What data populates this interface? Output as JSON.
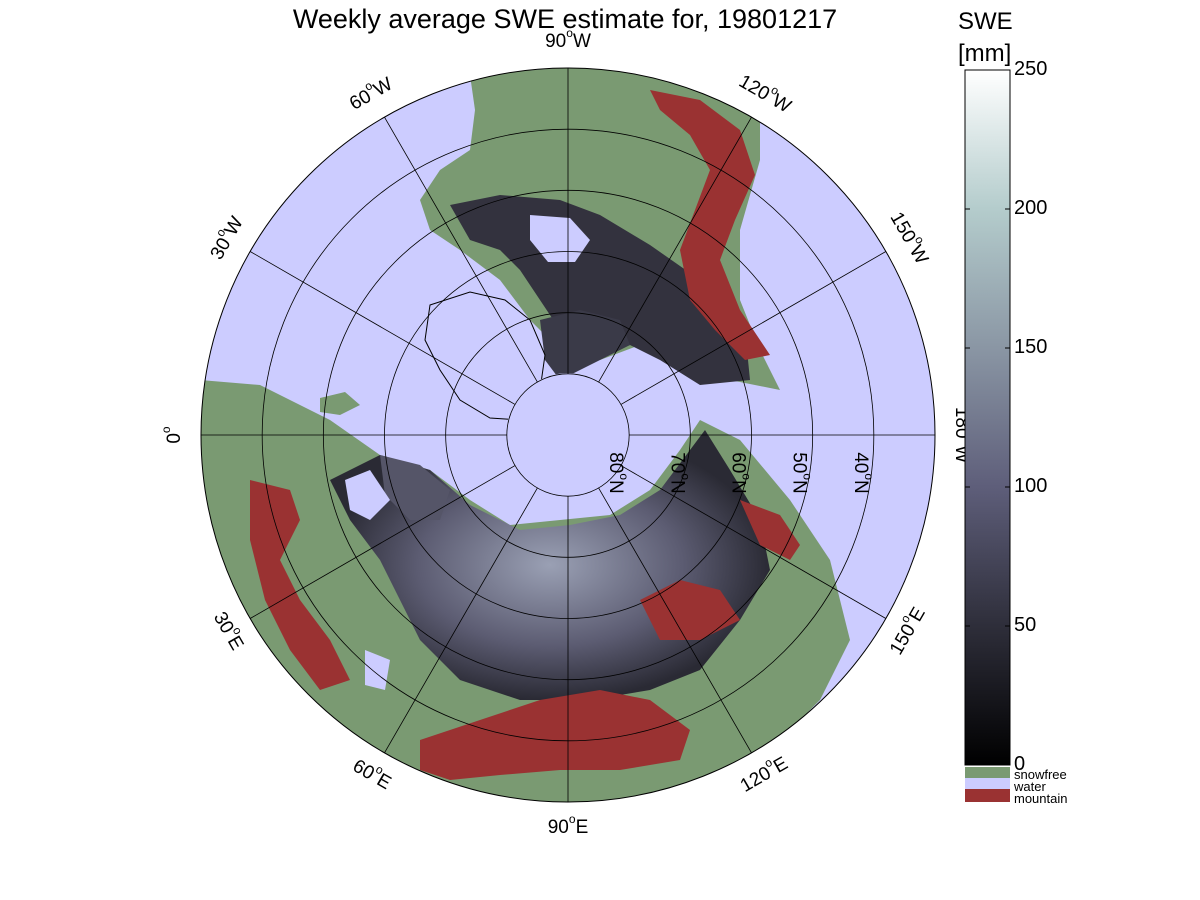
{
  "title": "Weekly average SWE estimate for, 19801217",
  "colorbar": {
    "title_line1": "SWE",
    "title_line2": "[mm]",
    "ticks": [
      "250",
      "200",
      "150",
      "100",
      "50",
      "0"
    ],
    "tick_values": [
      250,
      200,
      150,
      100,
      50,
      0
    ],
    "range": [
      0,
      250
    ]
  },
  "legend": [
    {
      "label": "snowfree",
      "color": "#7a9a72"
    },
    {
      "label": "water",
      "color": "#ccccff"
    },
    {
      "label": "mountain",
      "color": "#9a3232"
    }
  ],
  "longitude_labels": [
    {
      "text": "90",
      "suffix": "W",
      "deg": -90
    },
    {
      "text": "120",
      "suffix": "W",
      "deg": -60
    },
    {
      "text": "150",
      "suffix": "W",
      "deg": -30
    },
    {
      "text": "180",
      "suffix": "W",
      "deg": 0
    },
    {
      "text": "150",
      "suffix": "E",
      "deg": 30
    },
    {
      "text": "120",
      "suffix": "E",
      "deg": 60
    },
    {
      "text": "90",
      "suffix": "E",
      "deg": 90
    },
    {
      "text": "60",
      "suffix": "E",
      "deg": 120
    },
    {
      "text": "30",
      "suffix": "E",
      "deg": 150
    },
    {
      "text": "0",
      "suffix": "",
      "deg": 180
    },
    {
      "text": "30",
      "suffix": "W",
      "deg": 210
    },
    {
      "text": "60",
      "suffix": "W",
      "deg": 240
    }
  ],
  "latitude_labels": [
    {
      "text": "80",
      "suffix": "N",
      "lat": 80
    },
    {
      "text": "70",
      "suffix": "N",
      "lat": 70
    },
    {
      "text": "60",
      "suffix": "N",
      "lat": 60
    },
    {
      "text": "50",
      "suffix": "N",
      "lat": 50
    },
    {
      "text": "40",
      "suffix": "N",
      "lat": 40
    }
  ],
  "colors": {
    "water": "#ccccff",
    "snowfree": "#7a9a72",
    "mountain": "#9a3232",
    "swe_low": "#0a0a10",
    "swe_high": "#ffffff"
  }
}
